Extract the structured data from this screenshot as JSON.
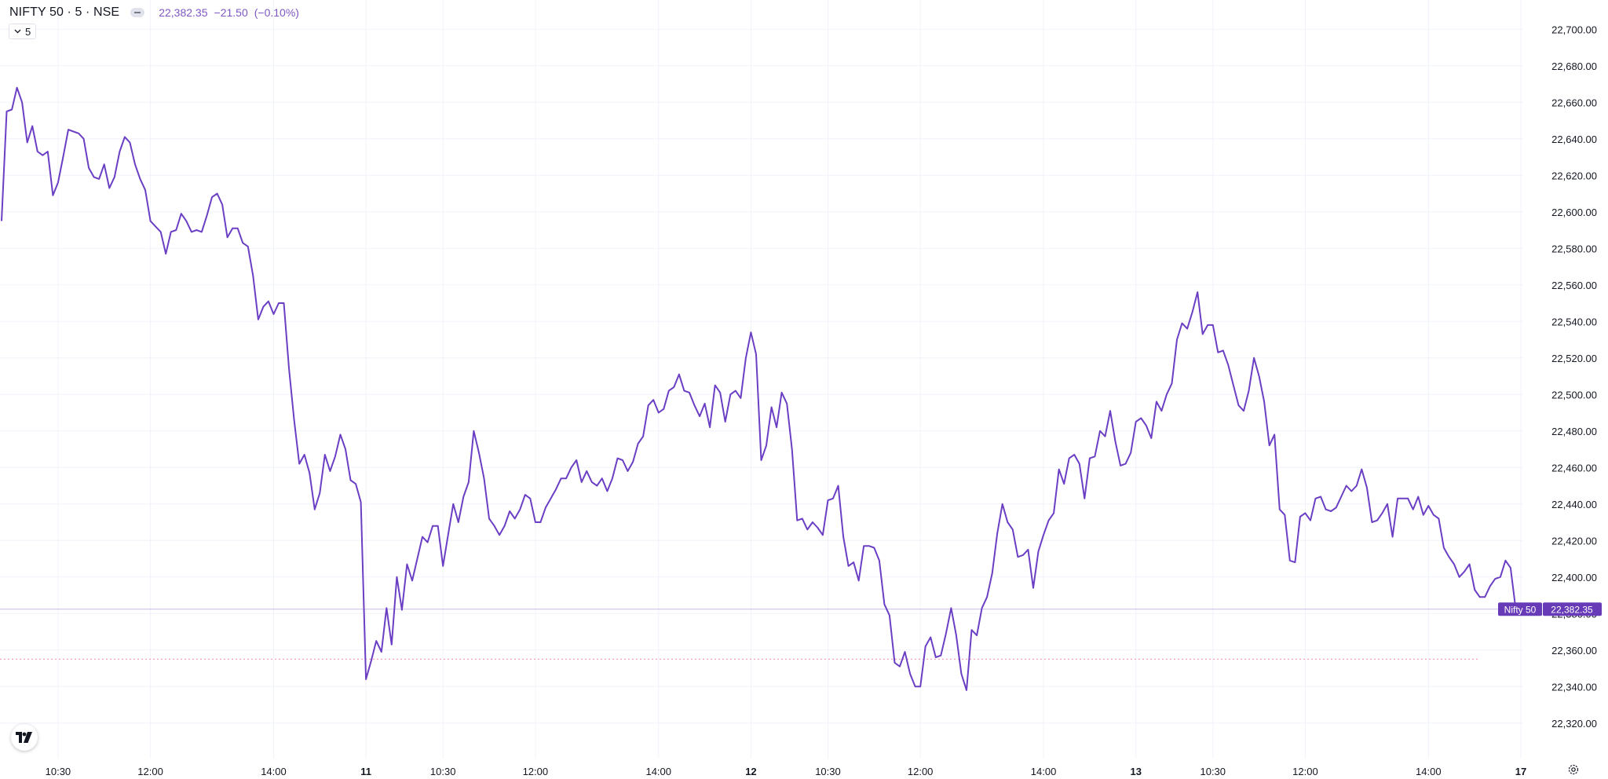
{
  "legend": {
    "symbol": "NIFTY 50 · 5 · NSE",
    "last": "22,382.35",
    "change": "−21.50",
    "change_pct": "(−0.10%)"
  },
  "interval": {
    "label": "5"
  },
  "icons": {
    "chevron": "chevron-down-icon",
    "eye": "hide-eye-icon",
    "logo": "tradingview-logo-icon",
    "settings": "gear-icon"
  },
  "colors": {
    "line": "#6b3fc4",
    "label_bg": "#673ab7",
    "grid": "#f0f3fa",
    "axis_text": "#131722",
    "reference": "#e91e63"
  },
  "price_label": {
    "name": "Nifty 50",
    "value": "22,382.35"
  },
  "chart_data": {
    "type": "line",
    "title": "NIFTY 50 · 5 · NSE",
    "ylim": [
      22310,
      22710
    ],
    "y_ticks": [
      22320,
      22340,
      22360,
      22380,
      22400,
      22420,
      22440,
      22460,
      22480,
      22500,
      22520,
      22540,
      22560,
      22580,
      22600,
      22620,
      22640,
      22660,
      22680,
      22700
    ],
    "y_tick_labels": [
      "22,320.00",
      "22,340.00",
      "22,360.00",
      "22,380.00",
      "22,400.00",
      "22,420.00",
      "22,440.00",
      "22,460.00",
      "22,480.00",
      "22,500.00",
      "22,520.00",
      "22,540.00",
      "22,560.00",
      "22,580.00",
      "22,600.00",
      "22,620.00",
      "22,640.00",
      "22,660.00",
      "22,680.00",
      "22,700.00"
    ],
    "x_range": [
      0,
      288
    ],
    "x_ticks": [
      {
        "x": 11,
        "label": "10:30",
        "bold": false
      },
      {
        "x": 29,
        "label": "12:00",
        "bold": false
      },
      {
        "x": 53,
        "label": "14:00",
        "bold": false
      },
      {
        "x": 71,
        "label": "11",
        "bold": true
      },
      {
        "x": 86,
        "label": "10:30",
        "bold": false
      },
      {
        "x": 104,
        "label": "12:00",
        "bold": false
      },
      {
        "x": 128,
        "label": "14:00",
        "bold": false
      },
      {
        "x": 146,
        "label": "12",
        "bold": true
      },
      {
        "x": 161,
        "label": "10:30",
        "bold": false
      },
      {
        "x": 179,
        "label": "12:00",
        "bold": false
      },
      {
        "x": 203,
        "label": "14:00",
        "bold": false
      },
      {
        "x": 221,
        "label": "13",
        "bold": true
      },
      {
        "x": 236,
        "label": "10:30",
        "bold": false
      },
      {
        "x": 254,
        "label": "12:00",
        "bold": false
      },
      {
        "x": 278,
        "label": "14:00",
        "bold": false
      },
      {
        "x": 296,
        "label": "17",
        "bold": true
      }
    ],
    "last_value": 22382.35,
    "reference_value": 22355,
    "series": [
      {
        "values": [
          22595,
          22655,
          22656,
          22668,
          22660,
          22638,
          22647,
          22633,
          22631,
          22633,
          22609,
          22616,
          22630,
          22645,
          22644,
          22643,
          22640,
          22624,
          22619,
          22618,
          22626,
          22613,
          22619,
          22633,
          22641,
          22638,
          22626,
          22618,
          22612,
          22595,
          22592,
          22589,
          22577,
          22589,
          22590,
          22599,
          22595,
          22589,
          22590,
          22589,
          22598,
          22608,
          22610,
          22604,
          22586,
          22591,
          22591,
          22583,
          22581,
          22565,
          22541,
          22548,
          22551,
          22544,
          22550,
          22550,
          22514,
          22486,
          22462,
          22467,
          22457,
          22437,
          22446,
          22467,
          22458,
          22466,
          22478,
          22470,
          22453,
          22451,
          22441,
          22344,
          22354,
          22365,
          22359,
          22383,
          22363,
          22400,
          22382,
          22407,
          22398,
          22410,
          22422,
          22419,
          22428,
          22428,
          22406,
          22423,
          22440,
          22430,
          22444,
          22452,
          22480,
          22468,
          22454,
          22432,
          22428,
          22423,
          22428,
          22436,
          22432,
          22437,
          22445,
          22443,
          22430,
          22430,
          22438,
          22443,
          22448,
          22454,
          22454,
          22460,
          22464,
          22452,
          22458,
          22452,
          22450,
          22454,
          22447,
          22454,
          22465,
          22464,
          22458,
          22463,
          22473,
          22477,
          22494,
          22497,
          22490,
          22492,
          22502,
          22504,
          22511,
          22502,
          22501,
          22494,
          22488,
          22495,
          22482,
          22505,
          22501,
          22485,
          22500,
          22502,
          22498,
          22520,
          22534,
          22522,
          22464,
          22472,
          22493,
          22482,
          22501,
          22495,
          22470,
          22431,
          22432,
          22426,
          22430,
          22427,
          22423,
          22442,
          22443,
          22450,
          22422,
          22406,
          22408,
          22398,
          22417,
          22417,
          22416,
          22409,
          22385,
          22379,
          22353,
          22351,
          22359,
          22347,
          22340,
          22340,
          22362,
          22367,
          22356,
          22357,
          22369,
          22383,
          22368,
          22347,
          22338,
          22371,
          22368,
          22383,
          22389,
          22402,
          22424,
          22440,
          22430,
          22426,
          22411,
          22412,
          22415,
          22394,
          22414,
          22423,
          22431,
          22435,
          22459,
          22451,
          22465,
          22467,
          22462,
          22443,
          22465,
          22466,
          22480,
          22477,
          22491,
          22474,
          22461,
          22462,
          22468,
          22485,
          22487,
          22483,
          22476,
          22496,
          22491,
          22500,
          22506,
          22530,
          22539,
          22536,
          22545,
          22556,
          22533,
          22538,
          22538,
          22523,
          22524,
          22516,
          22505,
          22494,
          22491,
          22502,
          22520,
          22510,
          22496,
          22472,
          22478,
          22437,
          22434,
          22409,
          22408,
          22433,
          22435,
          22431,
          22443,
          22444,
          22437,
          22436,
          22438,
          22444,
          22450,
          22447,
          22450,
          22459,
          22449,
          22430,
          22431,
          22435,
          22440,
          22422,
          22443,
          22443,
          22443,
          22437,
          22444,
          22434,
          22439,
          22434,
          22432,
          22416,
          22411,
          22407,
          22400,
          22403,
          22407,
          22393,
          22389,
          22389,
          22395,
          22399,
          22400,
          22409,
          22405,
          22382.35
        ]
      }
    ]
  }
}
